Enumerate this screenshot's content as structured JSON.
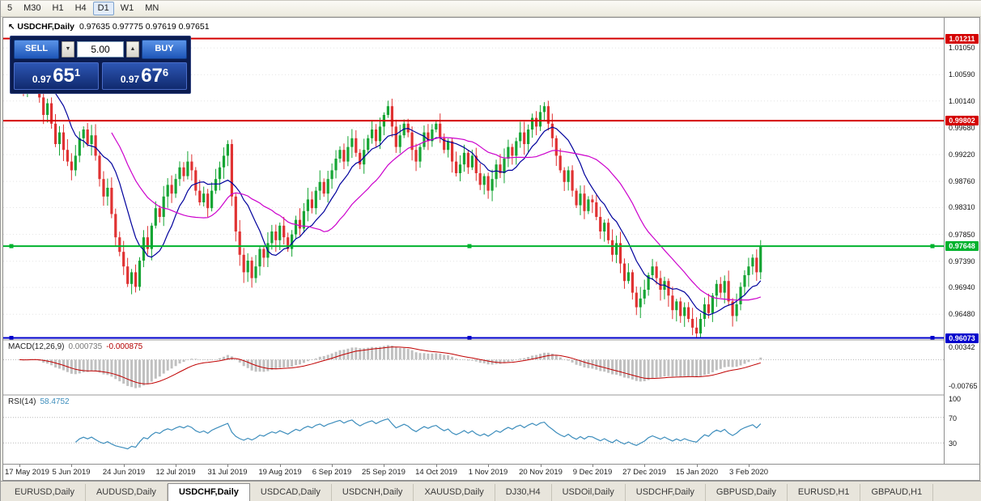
{
  "toolbar": {
    "buttons": [
      "5",
      "M30",
      "H1",
      "H4",
      "D1",
      "W1",
      "MN"
    ],
    "active": "D1"
  },
  "icons": {
    "chart_cursor": "↖",
    "volume_down": "▼",
    "volume_up": "▲"
  },
  "chart": {
    "symbol_title": "USDCHF,Daily",
    "header_values": "0.97635 0.97775 0.97619 0.97651"
  },
  "one_click": {
    "sell_label": "SELL",
    "buy_label": "BUY",
    "volume": "5.00",
    "sell_price_small": "0.97",
    "sell_price_big": "65",
    "sell_price_sup": "1",
    "buy_price_small": "0.97",
    "buy_price_big": "67",
    "buy_price_sup": "6"
  },
  "colors": {
    "bull": "#16a534",
    "bear": "#e03232",
    "ma_fast": "#00009c",
    "ma_slow": "#cc00cc",
    "macd_hist": "#c0c0c0",
    "macd_signal": "#c00000",
    "rsi_line": "#3c8dbc",
    "grid": "#e3e3e3",
    "level_dotted": "#b8b8b8"
  },
  "chart_data": {
    "type": "candlestick",
    "title": "USDCHF,Daily",
    "x_axis": {
      "labels": [
        "17 May 2019",
        "5 Jun 2019",
        "24 Jun 2019",
        "12 Jul 2019",
        "31 Jul 2019",
        "19 Aug 2019",
        "6 Sep 2019",
        "25 Sep 2019",
        "14 Oct 2019",
        "1 Nov 2019",
        "20 Nov 2019",
        "9 Dec 2019",
        "27 Dec 2019",
        "15 Jan 2020",
        "3 Feb 2020"
      ],
      "candles_per_label": 13
    },
    "y_axis": {
      "labels": [
        "1.01050",
        "1.00590",
        "1.00140",
        "0.99680",
        "0.99220",
        "0.98760",
        "0.98310",
        "0.97850",
        "0.97390",
        "0.96940",
        "0.96480"
      ]
    },
    "series": {
      "first_open": 1.011,
      "closes": [
        1.0065,
        1.004,
        1.0075,
        1.0095,
        1.006,
        1.002,
        0.999,
        1.001,
        0.9975,
        0.994,
        0.996,
        0.993,
        0.991,
        0.9895,
        0.992,
        0.995,
        0.9965,
        0.994,
        0.9955,
        0.992,
        0.988,
        0.985,
        0.9865,
        0.982,
        0.978,
        0.9755,
        0.973,
        0.97,
        0.972,
        0.9695,
        0.974,
        0.978,
        0.976,
        0.98,
        0.983,
        0.9815,
        0.985,
        0.987,
        0.9855,
        0.988,
        0.99,
        0.9885,
        0.991,
        0.9895,
        0.986,
        0.984,
        0.9855,
        0.983,
        0.986,
        0.988,
        0.99,
        0.992,
        0.994,
        0.985,
        0.979,
        0.975,
        0.972,
        0.974,
        0.971,
        0.973,
        0.976,
        0.9745,
        0.977,
        0.979,
        0.9775,
        0.98,
        0.978,
        0.976,
        0.9785,
        0.981,
        0.9795,
        0.9825,
        0.9845,
        0.983,
        0.986,
        0.9875,
        0.9855,
        0.988,
        0.9895,
        0.9915,
        0.993,
        0.991,
        0.9935,
        0.995,
        0.9925,
        0.9905,
        0.993,
        0.995,
        0.9965,
        0.9945,
        0.997,
        0.999,
        1.0005,
        0.997,
        0.9935,
        0.9955,
        0.9975,
        0.996,
        0.993,
        0.991,
        0.9935,
        0.996,
        0.9945,
        0.9965,
        0.9975,
        0.995,
        0.993,
        0.9945,
        0.991,
        0.989,
        0.9905,
        0.9925,
        0.99,
        0.992,
        0.989,
        0.987,
        0.9885,
        0.986,
        0.988,
        0.9905,
        0.989,
        0.9915,
        0.9935,
        0.992,
        0.9945,
        0.996,
        0.994,
        0.9965,
        0.9985,
        0.997,
        0.9995,
        1.0005,
        0.9975,
        0.995,
        0.992,
        0.9895,
        0.9875,
        0.9895,
        0.986,
        0.9835,
        0.9855,
        0.9825,
        0.9845,
        0.984,
        0.9815,
        0.979,
        0.9805,
        0.9775,
        0.975,
        0.977,
        0.9735,
        0.9705,
        0.972,
        0.9685,
        0.966,
        0.9675,
        0.969,
        0.9715,
        0.973,
        0.971,
        0.969,
        0.9705,
        0.968,
        0.9655,
        0.967,
        0.9645,
        0.966,
        0.964,
        0.9625,
        0.9615,
        0.964,
        0.9665,
        0.965,
        0.968,
        0.97,
        0.9685,
        0.9705,
        0.967,
        0.9645,
        0.9665,
        0.9695,
        0.9715,
        0.973,
        0.9745,
        0.972,
        0.9765
      ]
    },
    "overlays": [
      {
        "name": "sma-fast",
        "period": 10,
        "color": "#00009c"
      },
      {
        "name": "sma-slow",
        "period": 24,
        "color": "#cc00cc"
      }
    ],
    "hlines": [
      {
        "price": 1.01211,
        "label": "1.01211",
        "color": "#d40000",
        "handles": false
      },
      {
        "price": 0.99802,
        "label": "0.99802",
        "color": "#d40000",
        "handles": false
      },
      {
        "price": 0.97648,
        "label": "0.97648",
        "color": "#00b22d",
        "handles": true
      },
      {
        "price": 0.96073,
        "label": "0.96073",
        "color": "#0000cc",
        "handles": true
      }
    ],
    "last_ohlc": {
      "open": "0.97635",
      "high": "0.97775",
      "low": "0.97619",
      "close": "0.97651"
    },
    "indicators": {
      "macd": {
        "label": "MACD(12,26,9)",
        "value_main": "0.000735",
        "value_signal": "-0.000875",
        "axis_labels": [
          "0.00342",
          "-0.00765"
        ],
        "fast": 12,
        "slow": 26,
        "signal": 9
      },
      "rsi": {
        "label": "RSI(14)",
        "value": "58.4752",
        "axis_labels": [
          "100",
          "70",
          "30"
        ],
        "axis_values": [
          100,
          70,
          30
        ],
        "levels": [
          70,
          30
        ],
        "period": 14
      }
    }
  },
  "tabs": {
    "items": [
      "EURUSD,Daily",
      "AUDUSD,Daily",
      "USDCHF,Daily",
      "USDCAD,Daily",
      "USDCNH,Daily",
      "XAUUSD,Daily",
      "DJ30,H4",
      "USDOil,Daily",
      "USDCHF,Daily",
      "GBPUSD,Daily",
      "EURUSD,H1",
      "GBPAUD,H1"
    ],
    "active_index": 2
  }
}
